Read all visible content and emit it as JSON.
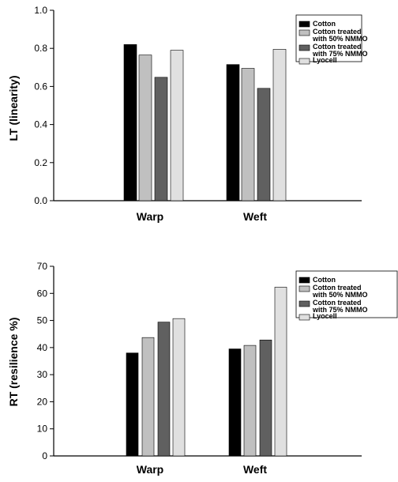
{
  "chart_data": [
    {
      "type": "bar",
      "title": "",
      "xlabel": "",
      "ylabel": "LT (linearity)",
      "ylim": [
        0,
        1.0
      ],
      "yticks": [
        "0.0",
        "0.2",
        "0.4",
        "0.6",
        "0.8",
        "1.0"
      ],
      "categories": [
        "Warp",
        "Weft"
      ],
      "legend_position": "top-right",
      "series": [
        {
          "name": "Cotton",
          "color": "#000000",
          "values": [
            0.82,
            0.715
          ]
        },
        {
          "name": "Cotton treated with 50% NMMO",
          "color": "#c0c0c0",
          "values": [
            0.765,
            0.695
          ]
        },
        {
          "name": "Cotton treated with 75% NMMO",
          "color": "#606060",
          "values": [
            0.648,
            0.59
          ]
        },
        {
          "name": "Lyocell",
          "color": "#e0e0e0",
          "values": [
            0.79,
            0.795
          ]
        }
      ]
    },
    {
      "type": "bar",
      "title": "",
      "xlabel": "",
      "ylabel": "RT (resilience %)",
      "ylim": [
        0,
        70
      ],
      "yticks": [
        "0",
        "10",
        "20",
        "30",
        "40",
        "50",
        "60",
        "70"
      ],
      "categories": [
        "Warp",
        "Weft"
      ],
      "legend_position": "top-right",
      "series": [
        {
          "name": "Cotton",
          "color": "#000000",
          "values": [
            38,
            39.5
          ]
        },
        {
          "name": "Cotton treated with 50% NMMO",
          "color": "#c0c0c0",
          "values": [
            43.7,
            40.8
          ]
        },
        {
          "name": "Cotton treated with 75% NMMO",
          "color": "#606060",
          "values": [
            49.4,
            42.8
          ]
        },
        {
          "name": "Lyocell",
          "color": "#e0e0e0",
          "values": [
            50.7,
            62.3
          ]
        }
      ]
    }
  ]
}
